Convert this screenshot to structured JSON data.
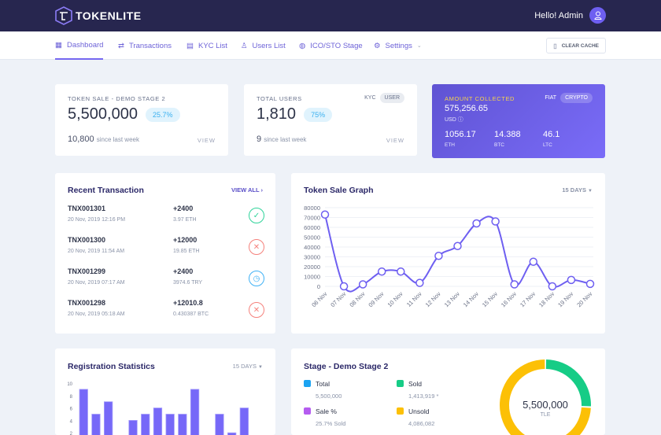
{
  "header": {
    "brand": "TOKENLITE",
    "greeting": "Hello! Admin"
  },
  "nav": {
    "items": [
      {
        "label": "Dashboard",
        "icon": "dashboard-icon"
      },
      {
        "label": "Transactions",
        "icon": "transfer-icon"
      },
      {
        "label": "KYC List",
        "icon": "document-icon"
      },
      {
        "label": "Users List",
        "icon": "users-icon"
      },
      {
        "label": "ICO/STO Stage",
        "icon": "coins-icon"
      },
      {
        "label": "Settings",
        "icon": "gear-icon"
      }
    ],
    "clear_cache": "CLEAR CACHE"
  },
  "token_sale": {
    "title": "TOKEN SALE - DEMO STAGE 2",
    "value": "5,500,000",
    "percent": "25.7%",
    "weekly": "10,800",
    "weekly_label": "since last week",
    "view": "VIEW"
  },
  "users": {
    "title": "TOTAL USERS",
    "tab_kyc": "KYC",
    "tab_user": "USER",
    "value": "1,810",
    "percent": "75%",
    "weekly": "9",
    "weekly_label": "since last week",
    "view": "VIEW"
  },
  "amount": {
    "title": "AMOUNT COLLECTED",
    "tab_fiat": "FIAT",
    "tab_crypto": "CRYPTO",
    "value": "575,256.65",
    "currency": "USD",
    "coins": [
      {
        "value": "1056.17",
        "code": "ETH"
      },
      {
        "value": "14.388",
        "code": "BTC"
      },
      {
        "value": "46.1",
        "code": "LTC"
      }
    ]
  },
  "recent": {
    "title": "Recent Transaction",
    "view_all": "VIEW ALL",
    "items": [
      {
        "id": "TNX001301",
        "date": "20 Nov, 2019 12:16 PM",
        "tokens": "+2400",
        "paid": "3.97 ETH",
        "status": "approved"
      },
      {
        "id": "TNX001300",
        "date": "20 Nov, 2019 11:54 AM",
        "tokens": "+12000",
        "paid": "19.85 ETH",
        "status": "canceled"
      },
      {
        "id": "TNX001299",
        "date": "20 Nov, 2019 07:17 AM",
        "tokens": "+2400",
        "paid": "3974.6 TRY",
        "status": "pending"
      },
      {
        "id": "TNX001298",
        "date": "20 Nov, 2019 05:18 AM",
        "tokens": "+12010.8",
        "paid": "0.430387 BTC",
        "status": "canceled"
      }
    ]
  },
  "graph": {
    "title": "Token Sale Graph",
    "range": "15 DAYS"
  },
  "registration": {
    "title": "Registration Statistics",
    "range": "15 DAYS"
  },
  "stage": {
    "title": "Stage - Demo Stage 2",
    "legend": [
      {
        "label": "Total",
        "value": "5,500,000",
        "color": "#1ba3f2"
      },
      {
        "label": "Sold",
        "value": "1,413,919 *",
        "color": "#16cc86"
      },
      {
        "label": "Sale %",
        "value": "25.7% Sold",
        "color": "#b55cf0"
      },
      {
        "label": "Unsold",
        "value": "4,086,082",
        "color": "#fcc006"
      }
    ],
    "center_value": "5,500,000",
    "center_unit": "TLE",
    "sold_fraction": 0.257
  },
  "chart_data": [
    {
      "type": "line",
      "title": "Token Sale Graph",
      "x": [
        "06 Nov",
        "07 Nov",
        "08 Nov",
        "09 Nov",
        "10 Nov",
        "11 Nov",
        "12 Nov",
        "13 Nov",
        "14 Nov",
        "15 Nov",
        "16 Nov",
        "17 Nov",
        "18 Nov",
        "19 Nov",
        "20 Nov"
      ],
      "values": [
        73000,
        0,
        2000,
        15000,
        15000,
        3500,
        31000,
        41000,
        64000,
        66000,
        2000,
        25000,
        0,
        6500,
        2500
      ],
      "ylim": [
        0,
        80000
      ],
      "yticks": [
        "0",
        "10000",
        "20000",
        "30000",
        "40000",
        "50000",
        "60000",
        "70000",
        "80000"
      ],
      "color": "#6e5ff1",
      "grid": true
    },
    {
      "type": "bar",
      "title": "Registration Statistics",
      "values": [
        9,
        5,
        7,
        0,
        4,
        5,
        6,
        5,
        5,
        9,
        0,
        5,
        2,
        6,
        0
      ],
      "ylim": [
        0,
        10
      ],
      "yticks": [
        "2",
        "4",
        "6",
        "8",
        "10"
      ],
      "color": "#7668f8"
    }
  ]
}
